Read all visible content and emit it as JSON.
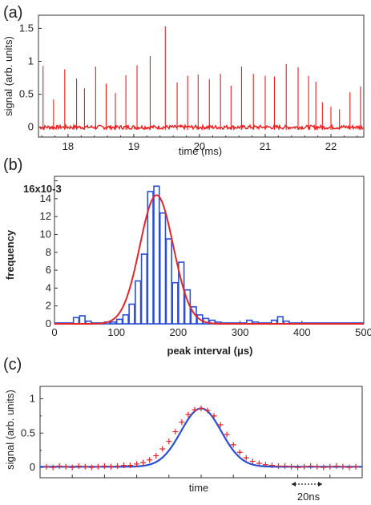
{
  "chart_data": [
    {
      "panel": "(a)",
      "type": "line",
      "xlabel": "time (ms)",
      "ylabel": "signal (arb. units)",
      "xlim": [
        17.55,
        22.5
      ],
      "ylim": [
        -0.15,
        1.7
      ],
      "xticks": [
        "18",
        "19",
        "20",
        "21",
        "22"
      ],
      "yticks": [
        "0",
        "0.5",
        "1",
        "1.5"
      ],
      "line_color": "#ee1c1c",
      "baseline": 0,
      "peaks": [
        {
          "x": 17.62,
          "y": 0.93
        },
        {
          "x": 17.78,
          "y": 0.42
        },
        {
          "x": 17.95,
          "y": 0.88
        },
        {
          "x": 18.13,
          "y": 0.74
        },
        {
          "x": 18.25,
          "y": 0.59
        },
        {
          "x": 18.42,
          "y": 0.92
        },
        {
          "x": 18.58,
          "y": 0.66
        },
        {
          "x": 18.72,
          "y": 0.52
        },
        {
          "x": 18.88,
          "y": 0.79
        },
        {
          "x": 19.05,
          "y": 0.94
        },
        {
          "x": 19.25,
          "y": 1.08
        },
        {
          "x": 19.48,
          "y": 1.53
        },
        {
          "x": 19.66,
          "y": 0.68
        },
        {
          "x": 19.82,
          "y": 0.78
        },
        {
          "x": 19.98,
          "y": 0.8
        },
        {
          "x": 20.15,
          "y": 0.73
        },
        {
          "x": 20.32,
          "y": 0.81
        },
        {
          "x": 20.48,
          "y": 0.63
        },
        {
          "x": 20.64,
          "y": 0.92
        },
        {
          "x": 20.82,
          "y": 0.81
        },
        {
          "x": 21.0,
          "y": 0.78
        },
        {
          "x": 21.14,
          "y": 0.77
        },
        {
          "x": 21.32,
          "y": 0.96
        },
        {
          "x": 21.5,
          "y": 0.91
        },
        {
          "x": 21.66,
          "y": 0.78
        },
        {
          "x": 21.77,
          "y": 0.69
        },
        {
          "x": 21.87,
          "y": 0.38
        },
        {
          "x": 22.0,
          "y": 0.31
        },
        {
          "x": 22.13,
          "y": 0.27
        },
        {
          "x": 22.29,
          "y": 0.53
        },
        {
          "x": 22.45,
          "y": 0.62
        }
      ]
    },
    {
      "panel": "(b)",
      "type": "bar",
      "subtype": "histogram with gaussian fit",
      "xlabel": "peak interval (μs)",
      "ylabel": "frequency",
      "y_multiplier": "x10-3",
      "xlim": [
        0,
        500
      ],
      "ylim": [
        0,
        16.5
      ],
      "xticks": [
        "0",
        "100",
        "200",
        "300",
        "400",
        "500"
      ],
      "yticks": [
        "0",
        "2",
        "4",
        "6",
        "8",
        "10",
        "12",
        "14",
        "16"
      ],
      "bin_width": 10,
      "hist_color": "#2a4fd6",
      "fit_color": "#e2262a",
      "bins": [
        {
          "x": 0,
          "y": 0.1
        },
        {
          "x": 10,
          "y": 0.1
        },
        {
          "x": 20,
          "y": 0.1
        },
        {
          "x": 30,
          "y": 0.7
        },
        {
          "x": 40,
          "y": 0.9
        },
        {
          "x": 50,
          "y": 0.3
        },
        {
          "x": 60,
          "y": 0.1
        },
        {
          "x": 70,
          "y": 0.1
        },
        {
          "x": 80,
          "y": 0.2
        },
        {
          "x": 90,
          "y": 0.2
        },
        {
          "x": 100,
          "y": 0.5
        },
        {
          "x": 110,
          "y": 1.0
        },
        {
          "x": 120,
          "y": 2.2
        },
        {
          "x": 130,
          "y": 4.8
        },
        {
          "x": 140,
          "y": 7.8
        },
        {
          "x": 150,
          "y": 14.8
        },
        {
          "x": 160,
          "y": 15.4
        },
        {
          "x": 170,
          "y": 12.4
        },
        {
          "x": 180,
          "y": 9.5
        },
        {
          "x": 190,
          "y": 4.6
        },
        {
          "x": 200,
          "y": 6.9
        },
        {
          "x": 210,
          "y": 3.8
        },
        {
          "x": 220,
          "y": 1.9
        },
        {
          "x": 230,
          "y": 1.0
        },
        {
          "x": 240,
          "y": 0.6
        },
        {
          "x": 250,
          "y": 0.4
        },
        {
          "x": 260,
          "y": 0.2
        },
        {
          "x": 270,
          "y": 0.1
        },
        {
          "x": 280,
          "y": 0.1
        },
        {
          "x": 290,
          "y": 0.1
        },
        {
          "x": 300,
          "y": 0.1
        },
        {
          "x": 310,
          "y": 0.4
        },
        {
          "x": 320,
          "y": 0.2
        },
        {
          "x": 330,
          "y": 0.1
        },
        {
          "x": 340,
          "y": 0.1
        },
        {
          "x": 350,
          "y": 0.4
        },
        {
          "x": 360,
          "y": 0.8
        },
        {
          "x": 370,
          "y": 0.3
        },
        {
          "x": 380,
          "y": 0.1
        },
        {
          "x": 390,
          "y": 0.1
        },
        {
          "x": 400,
          "y": 0.1
        },
        {
          "x": 410,
          "y": 0.1
        },
        {
          "x": 420,
          "y": 0.1
        },
        {
          "x": 430,
          "y": 0.1
        },
        {
          "x": 440,
          "y": 0.1
        },
        {
          "x": 450,
          "y": 0.1
        },
        {
          "x": 460,
          "y": 0.1
        },
        {
          "x": 470,
          "y": 0.1
        },
        {
          "x": 480,
          "y": 0.1
        },
        {
          "x": 490,
          "y": 0.1
        }
      ],
      "gaussian_fit": {
        "amplitude": 14.4,
        "center": 165,
        "sigma": 27
      }
    },
    {
      "panel": "(c)",
      "type": "scatter",
      "subtype": "averaged pulse with gaussian fit",
      "xlabel": "time",
      "ylabel": "signal (arb. units)",
      "scale_bar_label": "20ns",
      "ylim": [
        -0.15,
        1.18
      ],
      "yticks": [
        "0",
        "0.5",
        "1"
      ],
      "marker_color": "#e2262a",
      "fit_color": "#2a4fd6",
      "gaussian_fit": {
        "amplitude": 0.85,
        "center": 0,
        "sigma": 12.5,
        "offset": 0.01
      },
      "x_range_ns": [
        -100,
        100
      ],
      "points": [
        {
          "x": -96,
          "y": 0.01
        },
        {
          "x": -92,
          "y": 0.0
        },
        {
          "x": -88,
          "y": 0.02
        },
        {
          "x": -84,
          "y": 0.01
        },
        {
          "x": -80,
          "y": 0.0
        },
        {
          "x": -76,
          "y": 0.02
        },
        {
          "x": -72,
          "y": 0.01
        },
        {
          "x": -68,
          "y": 0.0
        },
        {
          "x": -64,
          "y": 0.01
        },
        {
          "x": -60,
          "y": 0.02
        },
        {
          "x": -56,
          "y": 0.01
        },
        {
          "x": -52,
          "y": 0.02
        },
        {
          "x": -48,
          "y": 0.03
        },
        {
          "x": -44,
          "y": 0.03
        },
        {
          "x": -40,
          "y": 0.05
        },
        {
          "x": -36,
          "y": 0.07
        },
        {
          "x": -32,
          "y": 0.11
        },
        {
          "x": -28,
          "y": 0.17
        },
        {
          "x": -24,
          "y": 0.27
        },
        {
          "x": -20,
          "y": 0.38
        },
        {
          "x": -16,
          "y": 0.52
        },
        {
          "x": -12,
          "y": 0.66
        },
        {
          "x": -8,
          "y": 0.77
        },
        {
          "x": -4,
          "y": 0.84
        },
        {
          "x": 0,
          "y": 0.86
        },
        {
          "x": 4,
          "y": 0.83
        },
        {
          "x": 8,
          "y": 0.75
        },
        {
          "x": 12,
          "y": 0.62
        },
        {
          "x": 16,
          "y": 0.48
        },
        {
          "x": 20,
          "y": 0.33
        },
        {
          "x": 24,
          "y": 0.22
        },
        {
          "x": 28,
          "y": 0.14
        },
        {
          "x": 32,
          "y": 0.09
        },
        {
          "x": 36,
          "y": 0.06
        },
        {
          "x": 40,
          "y": 0.04
        },
        {
          "x": 44,
          "y": 0.03
        },
        {
          "x": 48,
          "y": 0.02
        },
        {
          "x": 52,
          "y": 0.02
        },
        {
          "x": 56,
          "y": 0.01
        },
        {
          "x": 60,
          "y": 0.0
        },
        {
          "x": 64,
          "y": 0.01
        },
        {
          "x": 68,
          "y": 0.02
        },
        {
          "x": 72,
          "y": 0.01
        },
        {
          "x": 76,
          "y": 0.0
        },
        {
          "x": 80,
          "y": 0.01
        },
        {
          "x": 84,
          "y": 0.02
        },
        {
          "x": 88,
          "y": 0.01
        },
        {
          "x": 92,
          "y": 0.0
        },
        {
          "x": 96,
          "y": 0.01
        }
      ]
    }
  ]
}
